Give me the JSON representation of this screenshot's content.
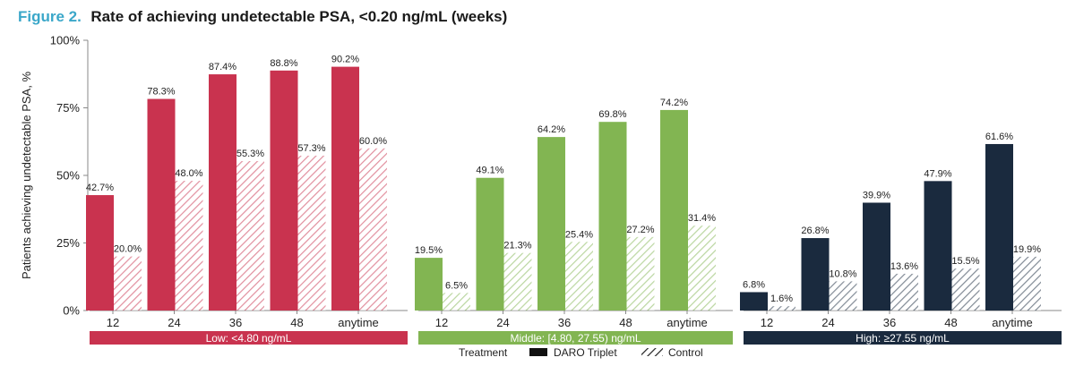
{
  "figure": {
    "prefix": "Figure 2.",
    "title": "Rate of achieving undetectable PSA, <0.20 ng/mL (weeks)"
  },
  "legend": {
    "title": "Treatment",
    "items": [
      "DARO Triplet",
      "Control"
    ]
  },
  "chart_data": {
    "type": "bar",
    "ylabel": "Patients achieving undetectable PSA, %",
    "ylim": [
      0,
      100
    ],
    "yticks": [
      "0%",
      "25%",
      "50%",
      "75%",
      "100%"
    ],
    "categories": [
      "12",
      "24",
      "36",
      "48",
      "anytime"
    ],
    "panels": [
      {
        "group": "Low: <4.80 ng/mL",
        "color": "#c9334f",
        "series": [
          {
            "name": "DARO Triplet",
            "values": [
              42.7,
              78.3,
              87.4,
              88.8,
              90.2
            ]
          },
          {
            "name": "Control",
            "values": [
              20.0,
              48.0,
              55.3,
              57.3,
              60.0
            ]
          }
        ],
        "labels": [
          [
            "42.7%",
            "78.3%",
            "87.4%",
            "88.8%",
            "90.2%"
          ],
          [
            "20.0%",
            "48.0%",
            "55.3%",
            "57.3%",
            "60.0%"
          ]
        ]
      },
      {
        "group": "Middle: [4.80, 27.55) ng/mL",
        "color": "#82b552",
        "series": [
          {
            "name": "DARO Triplet",
            "values": [
              19.5,
              49.1,
              64.2,
              69.8,
              74.2
            ]
          },
          {
            "name": "Control",
            "values": [
              6.5,
              21.3,
              25.4,
              27.2,
              31.4
            ]
          }
        ],
        "labels": [
          [
            "19.5%",
            "49.1%",
            "64.2%",
            "69.8%",
            "74.2%"
          ],
          [
            "6.5%",
            "21.3%",
            "25.4%",
            "27.2%",
            "31.4%"
          ]
        ]
      },
      {
        "group": "High: ≥27.55 ng/mL",
        "color": "#1a2a3e",
        "series": [
          {
            "name": "DARO Triplet",
            "values": [
              6.8,
              26.8,
              39.9,
              47.9,
              61.6
            ]
          },
          {
            "name": "Control",
            "values": [
              1.6,
              10.8,
              13.6,
              15.5,
              19.9
            ]
          }
        ],
        "labels": [
          [
            "6.8%",
            "26.8%",
            "39.9%",
            "47.9%",
            "61.6%"
          ],
          [
            "1.6%",
            "10.8%",
            "13.6%",
            "15.5%",
            "19.9%"
          ]
        ]
      }
    ]
  }
}
